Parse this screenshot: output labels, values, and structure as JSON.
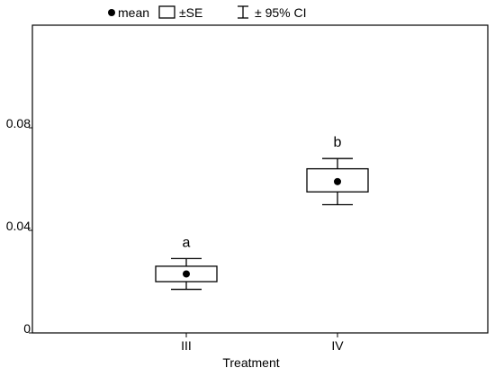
{
  "chart_data": {
    "type": "box",
    "title": "",
    "xlabel": "Treatment",
    "ylabel": "",
    "ylim": [
      0,
      0.12
    ],
    "yticks": [
      {
        "value": 0,
        "label": "0"
      },
      {
        "value": 0.04,
        "label": "0.04"
      },
      {
        "value": 0.08,
        "label": "0.08"
      }
    ],
    "categories": [
      "III",
      "IV"
    ],
    "series": [
      {
        "category": "III",
        "mean": 0.023,
        "se_low": 0.02,
        "se_high": 0.026,
        "ci_low": 0.017,
        "ci_high": 0.029,
        "letter": "a"
      },
      {
        "category": "IV",
        "mean": 0.059,
        "se_low": 0.055,
        "se_high": 0.064,
        "ci_low": 0.05,
        "ci_high": 0.068,
        "letter": "b"
      }
    ],
    "legend": {
      "position": "top",
      "items": [
        {
          "symbol": "dot",
          "label": "mean"
        },
        {
          "symbol": "box",
          "label": "±SE"
        },
        {
          "symbol": "whisker",
          "label": "± 95% CI"
        }
      ]
    },
    "grid": false
  }
}
